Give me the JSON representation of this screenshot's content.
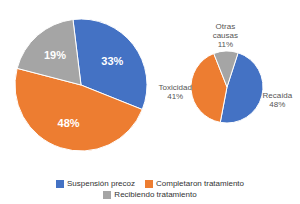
{
  "chart_data": [
    {
      "type": "pie",
      "categories": [
        "Suspensión precoz",
        "Completaron tratamiento",
        "Recibiendo tratamiento"
      ],
      "values": [
        33,
        48,
        19
      ],
      "value_labels": [
        "33%",
        "48%",
        "19%"
      ],
      "colors": [
        "#4472C4",
        "#ED7D31",
        "#A5A5A5"
      ],
      "data_labels": true,
      "legend": "bottom"
    },
    {
      "type": "pie",
      "values": [
        48,
        41,
        11
      ],
      "value_labels": [
        "Recaída\n48%",
        "Toxicidad\n41%",
        "Otras\ncausas\n11%"
      ],
      "colors": [
        "#4472C4",
        "#ED7D31",
        "#A5A5A5"
      ],
      "data_labels": true
    }
  ]
}
